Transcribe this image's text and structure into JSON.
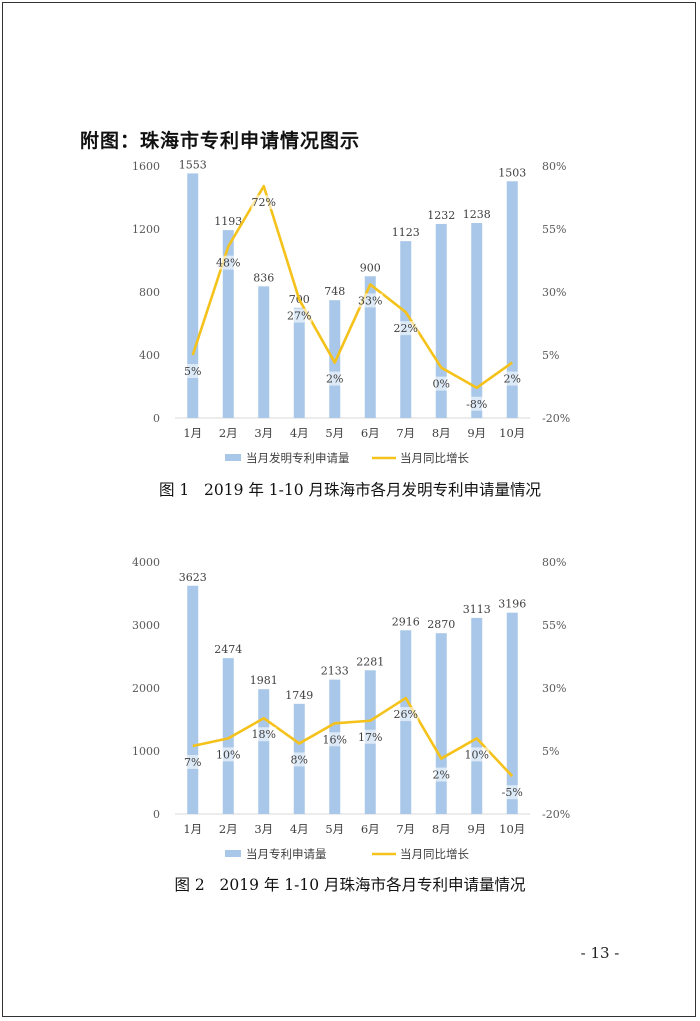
{
  "heading": "附图：珠海市专利申请情况图示",
  "page_number": "- 13 -",
  "colors": {
    "bar": "#a9c7e8",
    "line": "#f5c21b",
    "axis_text": "#595959"
  },
  "charts": [
    {
      "caption": "图 1   2019 年 1-10 月珠海市各月发明专利申请量情况",
      "chart_data": {
        "type": "bar",
        "categories": [
          "1月",
          "2月",
          "3月",
          "4月",
          "5月",
          "6月",
          "7月",
          "8月",
          "9月",
          "10月"
        ],
        "series": [
          {
            "name": "当月发明专利申请量",
            "type": "bar",
            "axis": "left",
            "values": [
              1553,
              1193,
              836,
              700,
              748,
              900,
              1123,
              1232,
              1238,
              1503
            ]
          },
          {
            "name": "当月同比增长",
            "type": "line",
            "axis": "right",
            "values": [
              5,
              48,
              72,
              27,
              2,
              33,
              22,
              0,
              -8,
              2
            ],
            "labels": [
              "5%",
              "48%",
              "72%",
              "27%",
              "2%",
              "33%",
              "22%",
              "0%",
              "-8%",
              "2%"
            ]
          }
        ],
        "left_axis": {
          "ticks": [
            0,
            400,
            800,
            1200,
            1600
          ],
          "range": [
            0,
            1600
          ]
        },
        "right_axis": {
          "ticks": [
            "-20%",
            "5%",
            "30%",
            "55%",
            "80%"
          ],
          "range": [
            -20,
            80
          ]
        },
        "legend_position": "bottom"
      }
    },
    {
      "caption": "图 2   2019 年 1-10 月珠海市各月专利申请量情况",
      "chart_data": {
        "type": "bar",
        "categories": [
          "1月",
          "2月",
          "3月",
          "4月",
          "5月",
          "6月",
          "7月",
          "8月",
          "9月",
          "10月"
        ],
        "series": [
          {
            "name": "当月专利申请量",
            "type": "bar",
            "axis": "left",
            "values": [
              3623,
              2474,
              1981,
              1749,
              2133,
              2281,
              2916,
              2870,
              3113,
              3196
            ]
          },
          {
            "name": "当月同比增长",
            "type": "line",
            "axis": "right",
            "values": [
              7,
              10,
              18,
              8,
              16,
              17,
              26,
              2,
              10,
              -5
            ],
            "labels": [
              "7%",
              "10%",
              "18%",
              "8%",
              "16%",
              "17%",
              "26%",
              "2%",
              "10%",
              "-5%"
            ]
          }
        ],
        "left_axis": {
          "ticks": [
            0,
            1000,
            2000,
            3000,
            4000
          ],
          "range": [
            0,
            4000
          ]
        },
        "right_axis": {
          "ticks": [
            "-20%",
            "5%",
            "30%",
            "55%",
            "80%"
          ],
          "range": [
            -20,
            80
          ]
        },
        "legend_position": "bottom"
      }
    }
  ]
}
